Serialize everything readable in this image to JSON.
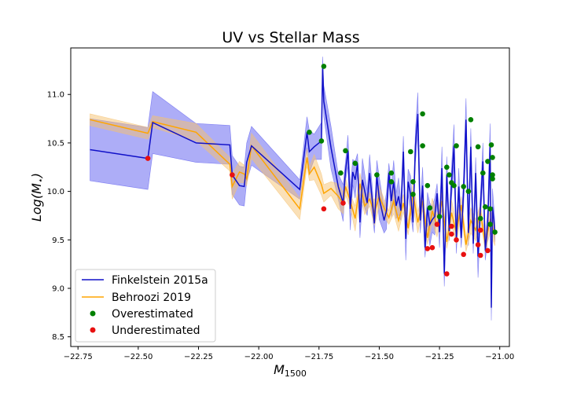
{
  "chart_data": {
    "type": "line",
    "title": "UV vs Stellar Mass",
    "xlabel": "M",
    "xlabel_sub": "1500",
    "ylabel": "Log(M",
    "ylabel_sub": "⋆",
    "ylabel_suffix": ")",
    "xlim": [
      -22.78,
      -20.96
    ],
    "ylim": [
      8.4,
      11.48
    ],
    "xticks": [
      -22.75,
      -22.5,
      -22.25,
      -22.0,
      -21.75,
      -21.5,
      -21.25,
      -21.0
    ],
    "xtick_labels": [
      "−22.75",
      "−22.50",
      "−22.25",
      "−22.00",
      "−21.75",
      "−21.50",
      "−21.25",
      "−21.00"
    ],
    "yticks": [
      8.5,
      9.0,
      9.5,
      10.0,
      10.5,
      11.0
    ],
    "ytick_labels": [
      "8.5",
      "9.0",
      "9.5",
      "10.0",
      "10.5",
      "11.0"
    ],
    "grid": false,
    "legend_position": "lower-left",
    "colors": {
      "finkelstein": "#1010c8",
      "finkelstein_band": "#5b5bef",
      "behroozi": "#ffa500",
      "behroozi_band": "#f5c270",
      "overestimated": "#008000",
      "underestimated": "#e81010"
    },
    "series": [
      {
        "name": "Finkelstein 2015a",
        "kind": "line",
        "x": [
          -22.7,
          -22.46,
          -22.44,
          -22.26,
          -22.12,
          -22.11,
          -22.08,
          -22.06,
          -22.05,
          -22.03,
          -21.83,
          -21.8,
          -21.79,
          -21.77,
          -21.74,
          -21.735,
          -21.73,
          -21.7,
          -21.67,
          -21.65,
          -21.64,
          -21.63,
          -21.62,
          -21.61,
          -21.6,
          -21.59,
          -21.58,
          -21.57,
          -21.55,
          -21.54,
          -21.52,
          -21.51,
          -21.5,
          -21.48,
          -21.47,
          -21.46,
          -21.45,
          -21.44,
          -21.43,
          -21.42,
          -21.41,
          -21.4,
          -21.39,
          -21.38,
          -21.37,
          -21.36,
          -21.35,
          -21.34,
          -21.33,
          -21.32,
          -21.31,
          -21.3,
          -21.29,
          -21.28,
          -21.27,
          -21.26,
          -21.25,
          -21.24,
          -21.23,
          -21.22,
          -21.21,
          -21.2,
          -21.19,
          -21.18,
          -21.17,
          -21.16,
          -21.15,
          -21.14,
          -21.13,
          -21.12,
          -21.11,
          -21.1,
          -21.09,
          -21.08,
          -21.07,
          -21.06,
          -21.05,
          -21.04,
          -21.035,
          -21.03,
          -21.02
        ],
        "y": [
          10.43,
          10.34,
          10.71,
          10.5,
          10.48,
          10.17,
          10.06,
          10.05,
          10.3,
          10.47,
          10.02,
          10.61,
          10.41,
          10.46,
          10.52,
          11.29,
          10.93,
          10.45,
          10.05,
          9.88,
          10.21,
          10.42,
          9.82,
          10.2,
          10.12,
          10.29,
          9.68,
          10.12,
          9.88,
          10.19,
          9.67,
          10.16,
          9.93,
          9.7,
          9.8,
          10.19,
          9.9,
          10.1,
          9.85,
          9.95,
          9.8,
          10.41,
          9.51,
          10.1,
          9.97,
          9.68,
          10.46,
          10.8,
          9.7,
          10.06,
          9.42,
          9.83,
          9.66,
          9.71,
          9.74,
          9.98,
          9.58,
          10.24,
          9.15,
          10.17,
          9.59,
          10.09,
          10.47,
          9.49,
          10.05,
          9.52,
          10.0,
          10.74,
          9.57,
          10.46,
          9.46,
          10.19,
          9.33,
          9.84,
          10.31,
          9.39,
          9.66,
          10.48,
          8.8,
          9.84,
          9.58
        ]
      },
      {
        "name": "Behroozi 2019",
        "kind": "line",
        "x": [
          -22.7,
          -22.46,
          -22.44,
          -22.26,
          -22.12,
          -22.11,
          -22.08,
          -22.06,
          -22.05,
          -22.03,
          -21.83,
          -21.8,
          -21.79,
          -21.77,
          -21.74,
          -21.73,
          -21.7,
          -21.67,
          -21.65,
          -21.64,
          -21.62,
          -21.6,
          -21.58,
          -21.56,
          -21.54,
          -21.52,
          -21.5,
          -21.48,
          -21.46,
          -21.44,
          -21.42,
          -21.4,
          -21.38,
          -21.36,
          -21.34,
          -21.32,
          -21.3,
          -21.28,
          -21.26,
          -21.24,
          -21.22,
          -21.2,
          -21.18,
          -21.16,
          -21.14,
          -21.12,
          -21.1,
          -21.08,
          -21.06,
          -21.04,
          -21.02
        ],
        "y": [
          10.74,
          10.6,
          10.72,
          10.61,
          10.28,
          10.05,
          10.2,
          10.18,
          10.13,
          10.47,
          9.82,
          10.35,
          10.18,
          10.25,
          10.07,
          9.98,
          10.03,
          9.95,
          9.88,
          10.05,
          9.9,
          9.72,
          10.08,
          9.85,
          9.92,
          9.78,
          9.95,
          9.83,
          9.73,
          9.9,
          9.7,
          9.88,
          9.62,
          9.98,
          9.68,
          9.9,
          9.52,
          9.8,
          9.64,
          9.9,
          9.48,
          9.78,
          9.57,
          9.86,
          9.45,
          9.7,
          9.6,
          9.78,
          9.46,
          9.7,
          9.55
        ]
      },
      {
        "name": "Overestimated",
        "kind": "scatter",
        "x": [
          -21.79,
          -21.74,
          -21.73,
          -21.66,
          -21.64,
          -21.6,
          -21.51,
          -21.45,
          -21.45,
          -21.37,
          -21.36,
          -21.36,
          -21.32,
          -21.32,
          -21.3,
          -21.29,
          -21.25,
          -21.22,
          -21.21,
          -21.2,
          -21.19,
          -21.18,
          -21.15,
          -21.13,
          -21.12,
          -21.09,
          -21.08,
          -21.07,
          -21.06,
          -21.05,
          -21.04,
          -21.04,
          -21.035,
          -21.03,
          -21.03,
          -21.03,
          -21.02
        ],
        "y": [
          10.61,
          10.52,
          11.29,
          10.19,
          10.42,
          10.29,
          10.17,
          10.19,
          10.1,
          10.41,
          9.97,
          10.1,
          10.8,
          10.47,
          10.06,
          9.83,
          9.74,
          10.25,
          10.17,
          10.09,
          10.06,
          10.47,
          10.05,
          10.0,
          10.74,
          10.46,
          9.72,
          10.19,
          9.84,
          10.31,
          9.66,
          9.82,
          10.48,
          10.35,
          10.17,
          10.13,
          9.58
        ]
      },
      {
        "name": "Underestimated",
        "kind": "scatter",
        "x": [
          -22.46,
          -22.11,
          -21.73,
          -21.65,
          -21.3,
          -21.28,
          -21.26,
          -21.22,
          -21.2,
          -21.2,
          -21.18,
          -21.15,
          -21.09,
          -21.08,
          -21.08,
          -21.05
        ],
        "y": [
          10.34,
          10.17,
          9.82,
          9.88,
          9.41,
          9.42,
          9.66,
          9.15,
          9.64,
          9.56,
          9.5,
          9.35,
          9.45,
          9.6,
          9.34,
          9.39
        ]
      }
    ]
  }
}
